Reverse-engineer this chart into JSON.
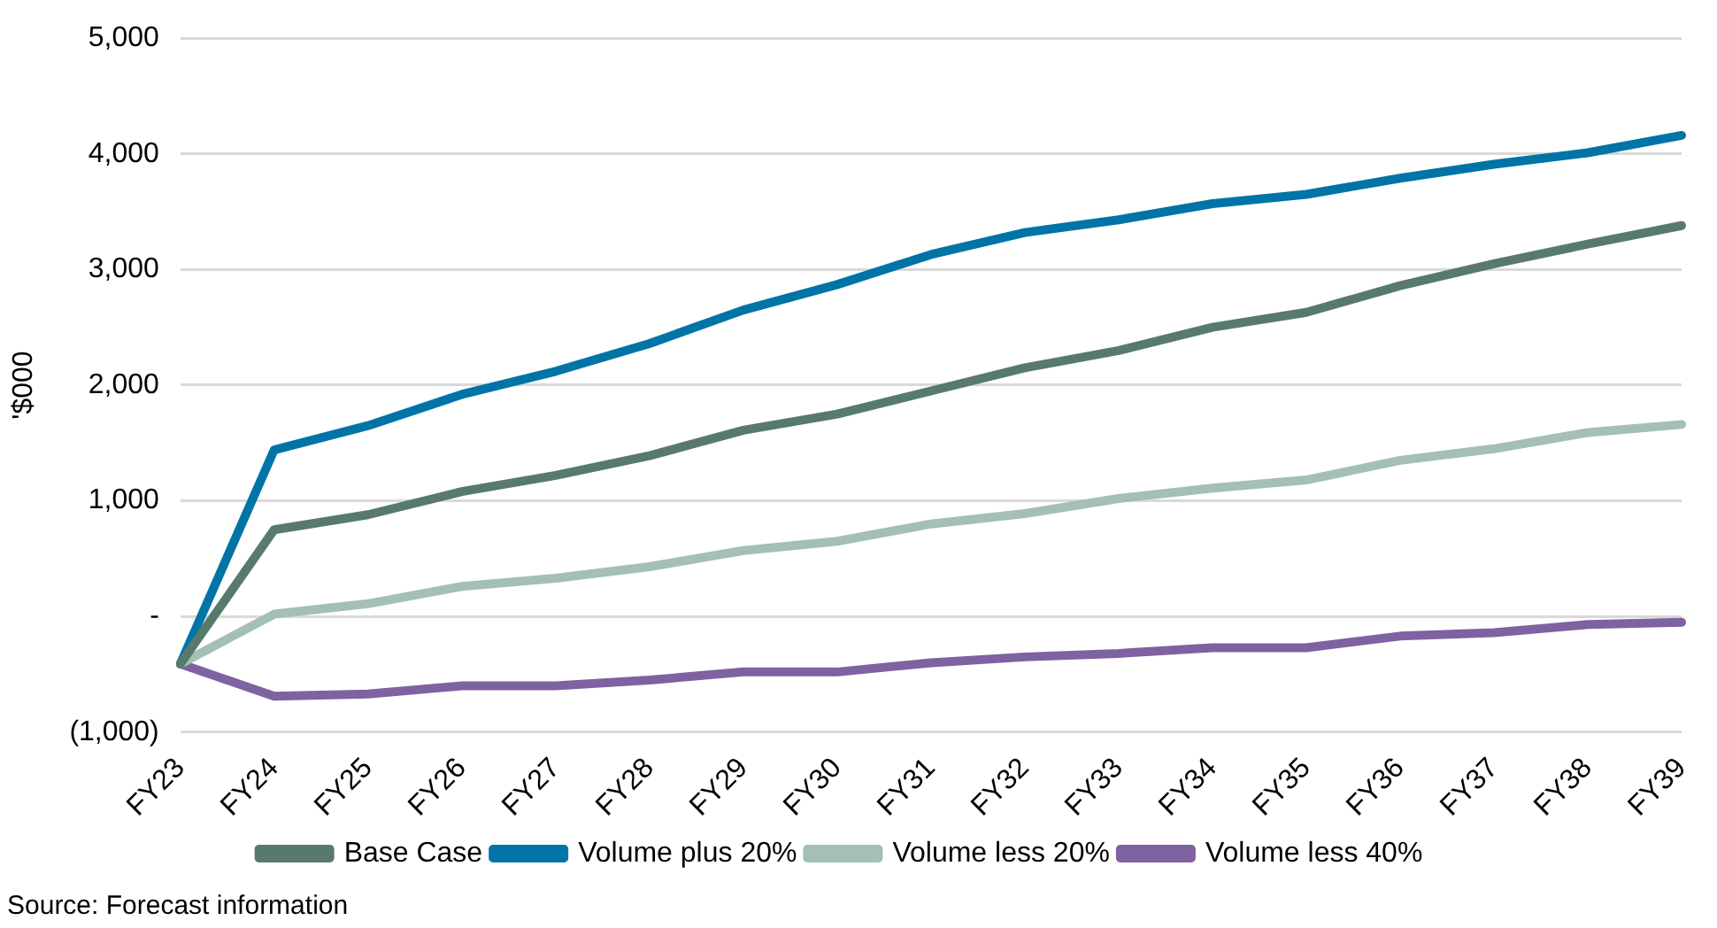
{
  "chart_data": {
    "type": "line",
    "ylabel": "'$000",
    "categories": [
      "FY23",
      "FY24",
      "FY25",
      "FY26",
      "FY27",
      "FY28",
      "FY29",
      "FY30",
      "FY31",
      "FY32",
      "FY33",
      "FY34",
      "FY35",
      "FY36",
      "FY37",
      "FY38",
      "FY39"
    ],
    "series": [
      {
        "name": "Base Case",
        "color": "#587a6c",
        "values": [
          -410,
          750,
          880,
          1080,
          1220,
          1390,
          1610,
          1750,
          1950,
          2150,
          2300,
          2500,
          2630,
          2860,
          3050,
          3220,
          3380
        ]
      },
      {
        "name": "Volume plus 20%",
        "color": "#0074a6",
        "values": [
          -410,
          1440,
          1650,
          1920,
          2120,
          2360,
          2650,
          2870,
          3130,
          3320,
          3430,
          3570,
          3650,
          3790,
          3910,
          4010,
          4160
        ]
      },
      {
        "name": "Volume less 20%",
        "color": "#a4bfb3",
        "values": [
          -410,
          20,
          110,
          260,
          330,
          430,
          570,
          650,
          800,
          890,
          1020,
          1110,
          1180,
          1350,
          1450,
          1590,
          1660
        ]
      },
      {
        "name": "Volume less 40%",
        "color": "#7f62a1",
        "values": [
          -410,
          -690,
          -670,
          -600,
          -600,
          -550,
          -480,
          -480,
          -400,
          -350,
          -320,
          -270,
          -270,
          -170,
          -140,
          -70,
          -50
        ]
      }
    ],
    "ylim": [
      -1000,
      5000
    ],
    "yticks": [
      {
        "value": -1000,
        "label": "(1,000)"
      },
      {
        "value": 0,
        "label": "-"
      },
      {
        "value": 1000,
        "label": "1,000"
      },
      {
        "value": 2000,
        "label": "2,000"
      },
      {
        "value": 3000,
        "label": "3,000"
      },
      {
        "value": 4000,
        "label": "4,000"
      },
      {
        "value": 5000,
        "label": "5,000"
      }
    ],
    "grid": "y",
    "legend": "bottom",
    "marker": "none",
    "line_style": "solid",
    "annotations": [
      "Source: Forecast information"
    ]
  }
}
